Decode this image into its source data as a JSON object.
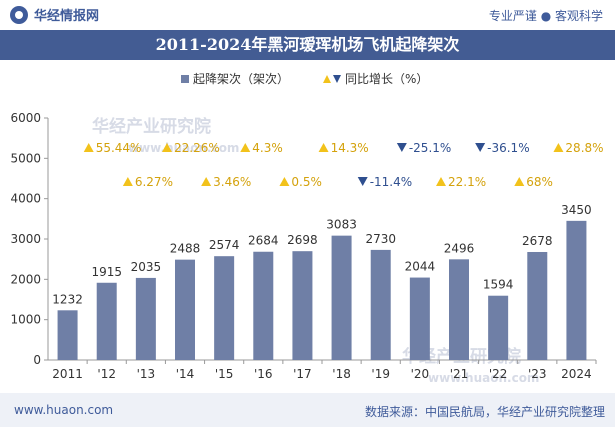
{
  "header": {
    "brand": "华经情报网",
    "tagline": "专业严谨 ● 客观科学"
  },
  "title": "2011-2024年黑河瑷珲机场飞机起降架次",
  "footer": {
    "url": "www.huaon.com",
    "source": "数据来源：中国民航局，华经产业研究院整理"
  },
  "watermarks": [
    "华经产业研究院",
    "www.huaon.com",
    "华经产业研究院",
    "www.huaon.com"
  ],
  "colors": {
    "bar": "#6f7fa6",
    "up": "#f2c21b",
    "down": "#2f4f8f",
    "title_bg": "#435c93"
  },
  "chart_data": {
    "type": "bar",
    "categories": [
      "2011",
      "'12",
      "'13",
      "'14",
      "'15",
      "'16",
      "'17",
      "'18",
      "'19",
      "'20",
      "'21",
      "'22",
      "'23",
      "2024"
    ],
    "series": [
      {
        "name": "起降架次（架次）",
        "type": "bar",
        "values": [
          1232,
          1915,
          2035,
          2488,
          2574,
          2684,
          2698,
          3083,
          2730,
          2044,
          2496,
          1594,
          2678,
          3450
        ]
      },
      {
        "name": "同比增长（%）",
        "type": "marker",
        "values": [
          null,
          55.44,
          6.27,
          22.26,
          3.46,
          4.3,
          0.5,
          14.3,
          -11.4,
          -25.1,
          22.1,
          -36.1,
          68,
          28.8
        ],
        "labels": [
          "",
          "55.44%",
          "6.27%",
          "22.26%",
          "3.46%",
          "4.3%",
          "0.5%",
          "14.3%",
          "-11.4%",
          "-25.1%",
          "22.1%",
          "-36.1%",
          "68%",
          "28.8%"
        ]
      }
    ],
    "yticks": [
      0,
      1000,
      2000,
      3000,
      4000,
      5000,
      6000
    ],
    "ylim": [
      0,
      6000
    ],
    "legend_position": "top-center",
    "grid": false
  }
}
